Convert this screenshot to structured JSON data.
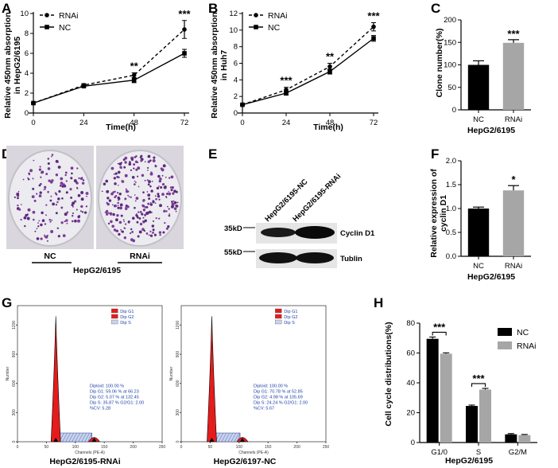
{
  "panels": {
    "A": {
      "letter": "A",
      "chart_data": {
        "type": "line",
        "xlabel": "Time(h)",
        "ylabel": "Relative 450nm absorption in HepG2/6195",
        "ylabel_line1": "Relative 450nm absorption",
        "ylabel_line2": "in HepG2/6195",
        "x": [
          0,
          24,
          48,
          72
        ],
        "x_tick_labels": [
          "0",
          "24",
          "48",
          "72"
        ],
        "ylim": [
          0,
          10
        ],
        "y_ticks": [
          "0",
          "2",
          "4",
          "6",
          "8",
          "10"
        ],
        "series": [
          {
            "name": "RNAi",
            "values": [
              1.0,
              2.8,
              3.8,
              8.4
            ],
            "err": [
              0.08,
              0.15,
              0.25,
              0.9
            ],
            "style": "dashed"
          },
          {
            "name": "NC",
            "values": [
              1.0,
              2.7,
              3.3,
              6.0
            ],
            "err": [
              0.08,
              0.12,
              0.25,
              0.4
            ],
            "style": "solid"
          }
        ],
        "annotations": [
          {
            "x": 48,
            "text": "**"
          },
          {
            "x": 72,
            "text": "***"
          }
        ]
      }
    },
    "B": {
      "letter": "B",
      "chart_data": {
        "type": "line",
        "xlabel": "Time(h)",
        "ylabel": "Relative 450nm absorption in Huh7",
        "ylabel_line1": "Relative 450nm absorption",
        "ylabel_line2": "in Huh7",
        "x": [
          0,
          24,
          48,
          72
        ],
        "x_tick_labels": [
          "0",
          "24",
          "48",
          "72"
        ],
        "ylim": [
          0,
          12
        ],
        "y_ticks": [
          "0",
          "2",
          "4",
          "6",
          "8",
          "10",
          "12"
        ],
        "series": [
          {
            "name": "RNAi",
            "values": [
              1.0,
              2.8,
              5.6,
              10.4
            ],
            "err": [
              0.08,
              0.3,
              0.4,
              0.5
            ],
            "style": "dashed"
          },
          {
            "name": "NC",
            "values": [
              1.0,
              2.4,
              5.0,
              9.0
            ],
            "err": [
              0.08,
              0.25,
              0.3,
              0.35
            ],
            "style": "solid"
          }
        ],
        "annotations": [
          {
            "x": 24,
            "text": "***"
          },
          {
            "x": 48,
            "text": "**"
          },
          {
            "x": 72,
            "text": "***"
          }
        ]
      }
    },
    "C": {
      "letter": "C",
      "chart_data": {
        "type": "bar",
        "ylabel": "Clone number(%)",
        "xlabel": "HepG2/6195",
        "categories": [
          "NC",
          "RNAi"
        ],
        "values": [
          100,
          149
        ],
        "err": [
          9,
          7
        ],
        "colors": [
          "#000000",
          "#a6a6a6"
        ],
        "ylim": [
          0,
          200
        ],
        "y_ticks": [
          "0",
          "50",
          "100",
          "150",
          "200"
        ],
        "annotation": "***"
      }
    },
    "D": {
      "letter": "D",
      "dish_labels": [
        "NC",
        "RNAi"
      ],
      "group_label": "HepG2/6195"
    },
    "E": {
      "letter": "E",
      "lane_labels": [
        "HepG2/6195-NC",
        "HepG2/6195-RNAi"
      ],
      "markers": [
        "35kD",
        "55kD"
      ],
      "proteins": [
        "Cyclin D1",
        "Tublin"
      ]
    },
    "F": {
      "letter": "F",
      "chart_data": {
        "type": "bar",
        "ylabel": "Relative expression of cyclin D1",
        "ylabel_line1": "Relative expression of",
        "ylabel_line2": "cyclin D1",
        "xlabel": "HepG2/6195",
        "categories": [
          "NC",
          "RNAi"
        ],
        "values": [
          1.0,
          1.38
        ],
        "err": [
          0.03,
          0.1
        ],
        "colors": [
          "#000000",
          "#a6a6a6"
        ],
        "ylim": [
          0,
          2.0
        ],
        "y_ticks": [
          "0.0",
          "0.5",
          "1.0",
          "1.5",
          "2.0"
        ],
        "annotation": "*"
      }
    },
    "G": {
      "letter": "G",
      "plots": [
        {
          "caption": "HepG2/6195-RNAi",
          "legend": [
            "Dip G1",
            "Dip G2",
            "Dip S"
          ],
          "stats": [
            "Diploid: 100.00 %",
            "Dip G1: 59.06 % at 66.23",
            "Dip G2: 5.07 % at 132.45",
            "Dip S: 35.87 %   G2/G1: 2.00",
            "%CV: 5.28"
          ],
          "x_ticks": [
            "0",
            "50",
            "100",
            "150",
            "200",
            "250"
          ],
          "y_ticks": [
            "0",
            "300",
            "600",
            "900",
            "1200"
          ],
          "xlabel": "Channels (PE-A)",
          "ylabel": "Number"
        },
        {
          "caption": "HepG2/6197-NC",
          "legend": [
            "Dip G1",
            "Dip G2",
            "Dip S"
          ],
          "stats": [
            "Diploid: 100.00 %",
            "Dip G1: 70.78 % at 52.85",
            "Dip G2: 4.98 % at 105.69",
            "Dip S: 24.24 %   G2/G1: 2.00",
            "%CV: 5.67"
          ],
          "x_ticks": [
            "0",
            "50",
            "100",
            "150",
            "200",
            "250"
          ],
          "y_ticks": [
            "0",
            "300",
            "600",
            "900",
            "1200"
          ],
          "xlabel": "Channels (PE-A)",
          "ylabel": "Number"
        }
      ]
    },
    "H": {
      "letter": "H",
      "chart_data": {
        "type": "bar",
        "ylabel": "Cell cycle distributions(%)",
        "xlabel": "HepG2/6195",
        "categories": [
          "G1/0",
          "S",
          "G2/M"
        ],
        "series": [
          {
            "name": "NC",
            "values": [
              69.5,
              24.5,
              5.5
            ],
            "err": [
              1.2,
              0.6,
              0.5
            ],
            "color": "#000000"
          },
          {
            "name": "RNAi",
            "values": [
              59.5,
              35.5,
              5.0
            ],
            "err": [
              0.6,
              0.8,
              0.4
            ],
            "color": "#a6a6a6"
          }
        ],
        "ylim": [
          0,
          80
        ],
        "y_ticks": [
          "0",
          "20",
          "40",
          "60",
          "80"
        ],
        "annotations": [
          {
            "category": "G1/0",
            "text": "***"
          },
          {
            "category": "S",
            "text": "***"
          }
        ]
      }
    }
  }
}
